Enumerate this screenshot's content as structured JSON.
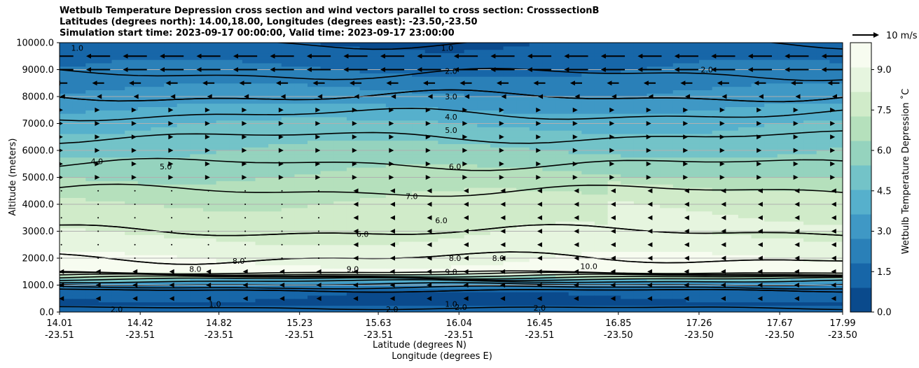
{
  "chart_data": {
    "type": "heatmap",
    "title": [
      "Wetbulb Temperature Depression cross section and wind vectors parallel to cross section: CrosssectionB",
      "Latitudes (degrees north): 14.00,18.00, Longitudes (degrees east): -23.50,-23.50",
      "Simulation start time: 2023-09-17 00:00:00, Valid time: 2023-09-17 23:00:00"
    ],
    "ylabel": "Altitude (meters)",
    "xlabel_lat": "Latitude (degrees N)",
    "xlabel_lon": "Longitude (degrees E)",
    "ylim": [
      0,
      10000
    ],
    "y_ticks": [
      "0.0",
      "1000.0",
      "2000.0",
      "3000.0",
      "4000.0",
      "5000.0",
      "6000.0",
      "7000.0",
      "8000.0",
      "9000.0",
      "10000.0"
    ],
    "y_tick_values": [
      0,
      1000,
      2000,
      3000,
      4000,
      5000,
      6000,
      7000,
      8000,
      9000,
      10000
    ],
    "x_lat_ticks": [
      "14.01",
      "14.42",
      "14.82",
      "15.23",
      "15.63",
      "16.04",
      "16.45",
      "16.85",
      "17.26",
      "17.67",
      "17.99"
    ],
    "x_lon_ticks": [
      "-23.51",
      "-23.51",
      "-23.51",
      "-23.51",
      "-23.51",
      "-23.51",
      "-23.51",
      "-23.50",
      "-23.50",
      "-23.50",
      "-23.50"
    ],
    "x_lat_values": [
      14.01,
      14.42,
      14.82,
      15.23,
      15.63,
      16.04,
      16.45,
      16.85,
      17.26,
      17.67,
      17.99
    ],
    "xlim": [
      14.01,
      17.99
    ],
    "colorbar": {
      "label": "Wetbulb Temperature Depression ˚C",
      "range": [
        0,
        10
      ],
      "ticks": [
        "0.0",
        "1.5",
        "3.0",
        "4.5",
        "6.0",
        "7.5",
        "9.0"
      ],
      "tick_values": [
        0,
        1.5,
        3.0,
        4.5,
        6.0,
        7.5,
        9.0
      ],
      "colors": [
        "#0a4a8c",
        "#1766a8",
        "#2a80b8",
        "#3f98c5",
        "#56b0cc",
        "#73c3c8",
        "#95d3be",
        "#b5e0bc",
        "#d0ebc9",
        "#e6f5df",
        "#f7fcf0"
      ]
    },
    "contour_levels": [
      1.0,
      2.0,
      3.0,
      4.0,
      5.0,
      6.0,
      7.0,
      8.0,
      9.0,
      10.0
    ],
    "field_profile": {
      "altitude": [
        0,
        300,
        800,
        1200,
        1500,
        2000,
        3000,
        4000,
        5000,
        6000,
        7000,
        8000,
        9000,
        10000
      ],
      "value": [
        1.2,
        0.8,
        1.0,
        4.5,
        9.5,
        9.0,
        8.0,
        7.5,
        6.5,
        5.5,
        4.5,
        3.0,
        1.8,
        1.0
      ]
    },
    "contour_labels": [
      {
        "text": "1.0",
        "lat": 14.1,
        "alt": 9800
      },
      {
        "text": "1.0",
        "lat": 15.98,
        "alt": 9800
      },
      {
        "text": "2.0",
        "lat": 16.0,
        "alt": 8950
      },
      {
        "text": "2.0",
        "lat": 17.3,
        "alt": 9000
      },
      {
        "text": "3.0",
        "lat": 16.0,
        "alt": 8000
      },
      {
        "text": "4.0",
        "lat": 16.0,
        "alt": 7250
      },
      {
        "text": "5.0",
        "lat": 16.0,
        "alt": 6750
      },
      {
        "text": "6.0",
        "lat": 16.02,
        "alt": 5400
      },
      {
        "text": "4.0",
        "lat": 14.2,
        "alt": 5600
      },
      {
        "text": "5.0",
        "lat": 14.55,
        "alt": 5400
      },
      {
        "text": "7.0",
        "lat": 15.8,
        "alt": 4300
      },
      {
        "text": "6.0",
        "lat": 15.95,
        "alt": 3400
      },
      {
        "text": "6.0",
        "lat": 15.55,
        "alt": 2900
      },
      {
        "text": "8.0",
        "lat": 16.02,
        "alt": 2000
      },
      {
        "text": "8.0",
        "lat": 16.24,
        "alt": 2000
      },
      {
        "text": "8.0",
        "lat": 14.92,
        "alt": 1900
      },
      {
        "text": "8.0",
        "lat": 14.7,
        "alt": 1600
      },
      {
        "text": "9.0",
        "lat": 15.5,
        "alt": 1600
      },
      {
        "text": "9.0",
        "lat": 16.0,
        "alt": 1500
      },
      {
        "text": "10.0",
        "lat": 16.7,
        "alt": 1700
      },
      {
        "text": "1.0",
        "lat": 16.0,
        "alt": 300
      },
      {
        "text": "2.0",
        "lat": 16.05,
        "alt": 180
      },
      {
        "text": "2.0",
        "lat": 16.45,
        "alt": 150
      },
      {
        "text": "2.0",
        "lat": 15.7,
        "alt": 100
      },
      {
        "text": "1.0",
        "lat": 14.8,
        "alt": 300
      },
      {
        "text": "2.0",
        "lat": 14.3,
        "alt": 100
      }
    ],
    "wind_reference": {
      "label": "10 m/s",
      "speed": 10
    }
  }
}
